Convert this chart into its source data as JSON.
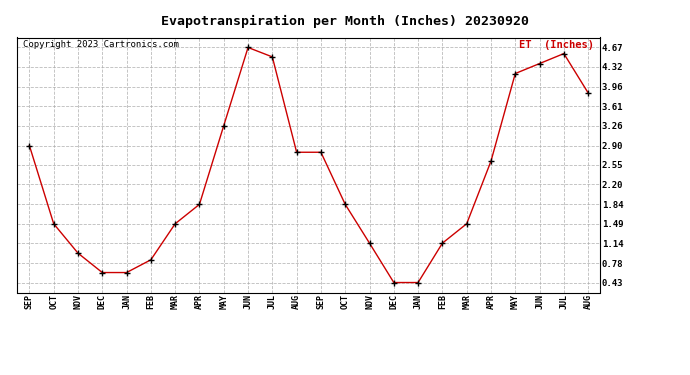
{
  "title": "Evapotranspiration per Month (Inches) 20230920",
  "legend_label": "ET  (Inches)",
  "copyright": "Copyright 2023 Cartronics.com",
  "months": [
    "SEP",
    "OCT",
    "NOV",
    "DEC",
    "JAN",
    "FEB",
    "MAR",
    "APR",
    "MAY",
    "JUN",
    "JUL",
    "AUG",
    "SEP",
    "OCT",
    "NOV",
    "DEC",
    "JAN",
    "FEB",
    "MAR",
    "APR",
    "MAY",
    "JUN",
    "JUL",
    "AUG"
  ],
  "values": [
    2.9,
    1.49,
    0.96,
    0.61,
    0.61,
    0.84,
    1.49,
    1.84,
    3.26,
    4.67,
    4.5,
    2.78,
    2.78,
    1.84,
    1.14,
    0.43,
    0.43,
    1.14,
    1.49,
    2.62,
    4.2,
    4.38,
    4.56,
    3.85
  ],
  "yticks": [
    0.43,
    0.78,
    1.14,
    1.49,
    1.84,
    2.2,
    2.55,
    2.9,
    3.26,
    3.61,
    3.96,
    4.32,
    4.67
  ],
  "line_color": "#cc0000",
  "marker_color": "#000000",
  "grid_color": "#aaaaaa",
  "title_color": "#000000",
  "legend_color": "#cc0000",
  "copyright_color": "#000000",
  "background_color": "#ffffff",
  "ylim": [
    0.25,
    4.85
  ],
  "title_fontsize": 9.5,
  "legend_fontsize": 7.5,
  "copyright_fontsize": 6.5,
  "tick_fontsize": 6,
  "ytick_fontsize": 6.5
}
